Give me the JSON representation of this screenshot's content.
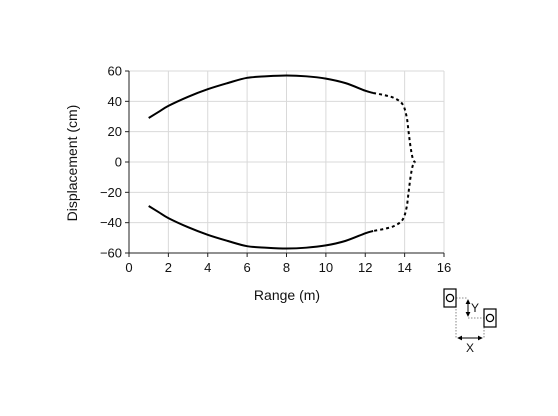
{
  "chart_data": {
    "type": "line",
    "xlabel": "Range (m)",
    "ylabel": "Displacement (cm)",
    "xlim": [
      0,
      16
    ],
    "ylim": [
      -60,
      60
    ],
    "xticks": [
      "0",
      "2",
      "4",
      "6",
      "8",
      "10",
      "12",
      "14",
      "16"
    ],
    "yticks": [
      "60",
      "40",
      "20",
      "0",
      "−20",
      "−40",
      "−60"
    ],
    "grid": true,
    "series": [
      {
        "style": "solid",
        "x": [
          1.0,
          1.5,
          2.0,
          3.0,
          4.0,
          5.0,
          6.0,
          7.0,
          8.0,
          9.0,
          10.0,
          11.0,
          12.0,
          12.4
        ],
        "y": [
          29,
          33,
          37,
          43,
          48,
          52,
          55.5,
          56.5,
          57,
          56.5,
          55,
          52,
          47,
          45.5
        ]
      },
      {
        "style": "dashed",
        "x": [
          12.4,
          13.0,
          13.5,
          13.9,
          14.1,
          14.2,
          14.3,
          14.4,
          14.5,
          14.5,
          14.4,
          14.3,
          14.2,
          14.1,
          13.9,
          13.5,
          13.0,
          12.4
        ],
        "y": [
          45.5,
          44,
          42,
          38,
          30,
          20,
          10,
          3,
          0,
          0,
          -3,
          -10,
          -20,
          -30,
          -38,
          -42,
          -44,
          -45.5
        ]
      },
      {
        "style": "solid",
        "x": [
          12.4,
          12.0,
          11.0,
          10.0,
          9.0,
          8.0,
          7.0,
          6.0,
          5.0,
          4.0,
          3.0,
          2.0,
          1.5,
          1.0
        ],
        "y": [
          -45.5,
          -47,
          -52,
          -55,
          -56.5,
          -57,
          -56.5,
          -55.5,
          -52,
          -48,
          -43,
          -37,
          -33,
          -29
        ]
      }
    ],
    "inset": {
      "type": "diagram",
      "x_label": "X",
      "y_label": "Y"
    }
  }
}
